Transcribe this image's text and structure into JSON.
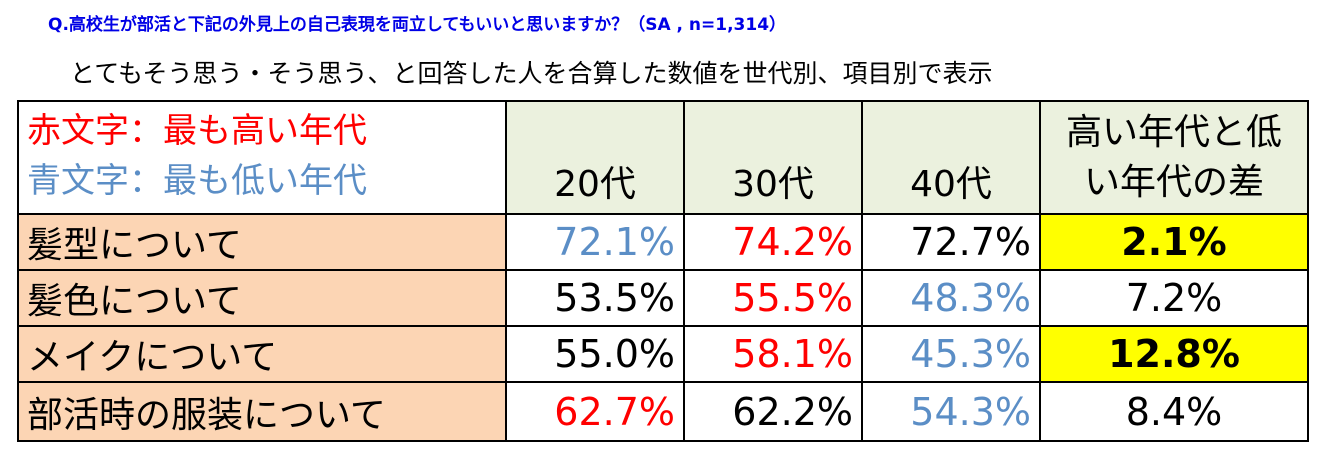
{
  "question": "Q.高校生が部活と下記の外見上の自己表現を両立してもいいと思いますか？（SA , n=1,314）",
  "subtitle": "とてもそう思う・そう思う、と回答した人を合算した数値を世代別、項目別で表示",
  "legend": {
    "red_text": "赤文字：最も高い年代",
    "blue_text": "青文字：最も低い年代"
  },
  "columns": {
    "age20": "20代",
    "age30": "30代",
    "age40": "40代",
    "diff_line1": "高い年代と低",
    "diff_line2": "い年代の差"
  },
  "colors": {
    "highest": "#ff0000",
    "lowest": "#5b8ec6",
    "label_bg": "#fcd5b4",
    "header_bg": "#ebf1de",
    "highlight_bg": "#ffff00"
  },
  "rows": [
    {
      "label": "髪型について",
      "v20": "72.1%",
      "c20": "lowest",
      "v30": "74.2%",
      "c30": "highest",
      "v40": "72.7%",
      "c40": "normal",
      "diff": "2.1%",
      "highlight": true
    },
    {
      "label": "髪色について",
      "v20": "53.5%",
      "c20": "normal",
      "v30": "55.5%",
      "c30": "highest",
      "v40": "48.3%",
      "c40": "lowest",
      "diff": "7.2%",
      "highlight": false
    },
    {
      "label": "メイクについて",
      "v20": "55.0%",
      "c20": "normal",
      "v30": "58.1%",
      "c30": "highest",
      "v40": "45.3%",
      "c40": "lowest",
      "diff": "12.8%",
      "highlight": true
    },
    {
      "label": "部活時の服装について",
      "v20": "62.7%",
      "c20": "highest",
      "v30": "62.2%",
      "c30": "normal",
      "v40": "54.3%",
      "c40": "lowest",
      "diff": "8.4%",
      "highlight": false
    }
  ]
}
